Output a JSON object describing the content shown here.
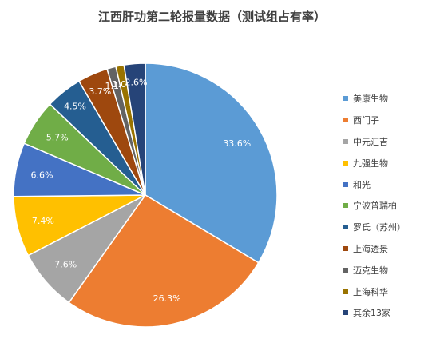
{
  "chart_data": {
    "type": "pie",
    "title": "江西肝功第二轮报量数据（测试组占有率）",
    "slices": [
      {
        "label": "美康生物",
        "value": 33.6,
        "display": "33.6%",
        "color": "#5B9BD5"
      },
      {
        "label": "西门子",
        "value": 26.3,
        "display": "26.3%",
        "color": "#ED7D31"
      },
      {
        "label": "中元汇吉",
        "value": 7.6,
        "display": "7.6%",
        "color": "#A5A5A5"
      },
      {
        "label": "九强生物",
        "value": 7.4,
        "display": "7.4%",
        "color": "#FFC000"
      },
      {
        "label": "和光",
        "value": 6.6,
        "display": "6.6%",
        "color": "#4472C4"
      },
      {
        "label": "宁波普瑞柏",
        "value": 5.7,
        "display": "5.7%",
        "color": "#70AD47"
      },
      {
        "label": "罗氏（苏州）",
        "value": 4.5,
        "display": "4.5%",
        "color": "#255E91"
      },
      {
        "label": "上海透景",
        "value": 3.7,
        "display": "3.7%",
        "color": "#9E480E"
      },
      {
        "label": "迈克生物",
        "value": 1.1,
        "display": "1.1%",
        "color": "#636363"
      },
      {
        "label": "上海科华",
        "value": 1.0,
        "display": "1.0%",
        "color": "#997300"
      },
      {
        "label": "其余13家",
        "value": 2.6,
        "display": "2.6%",
        "color": "#264478"
      }
    ],
    "legend_position": "right"
  }
}
